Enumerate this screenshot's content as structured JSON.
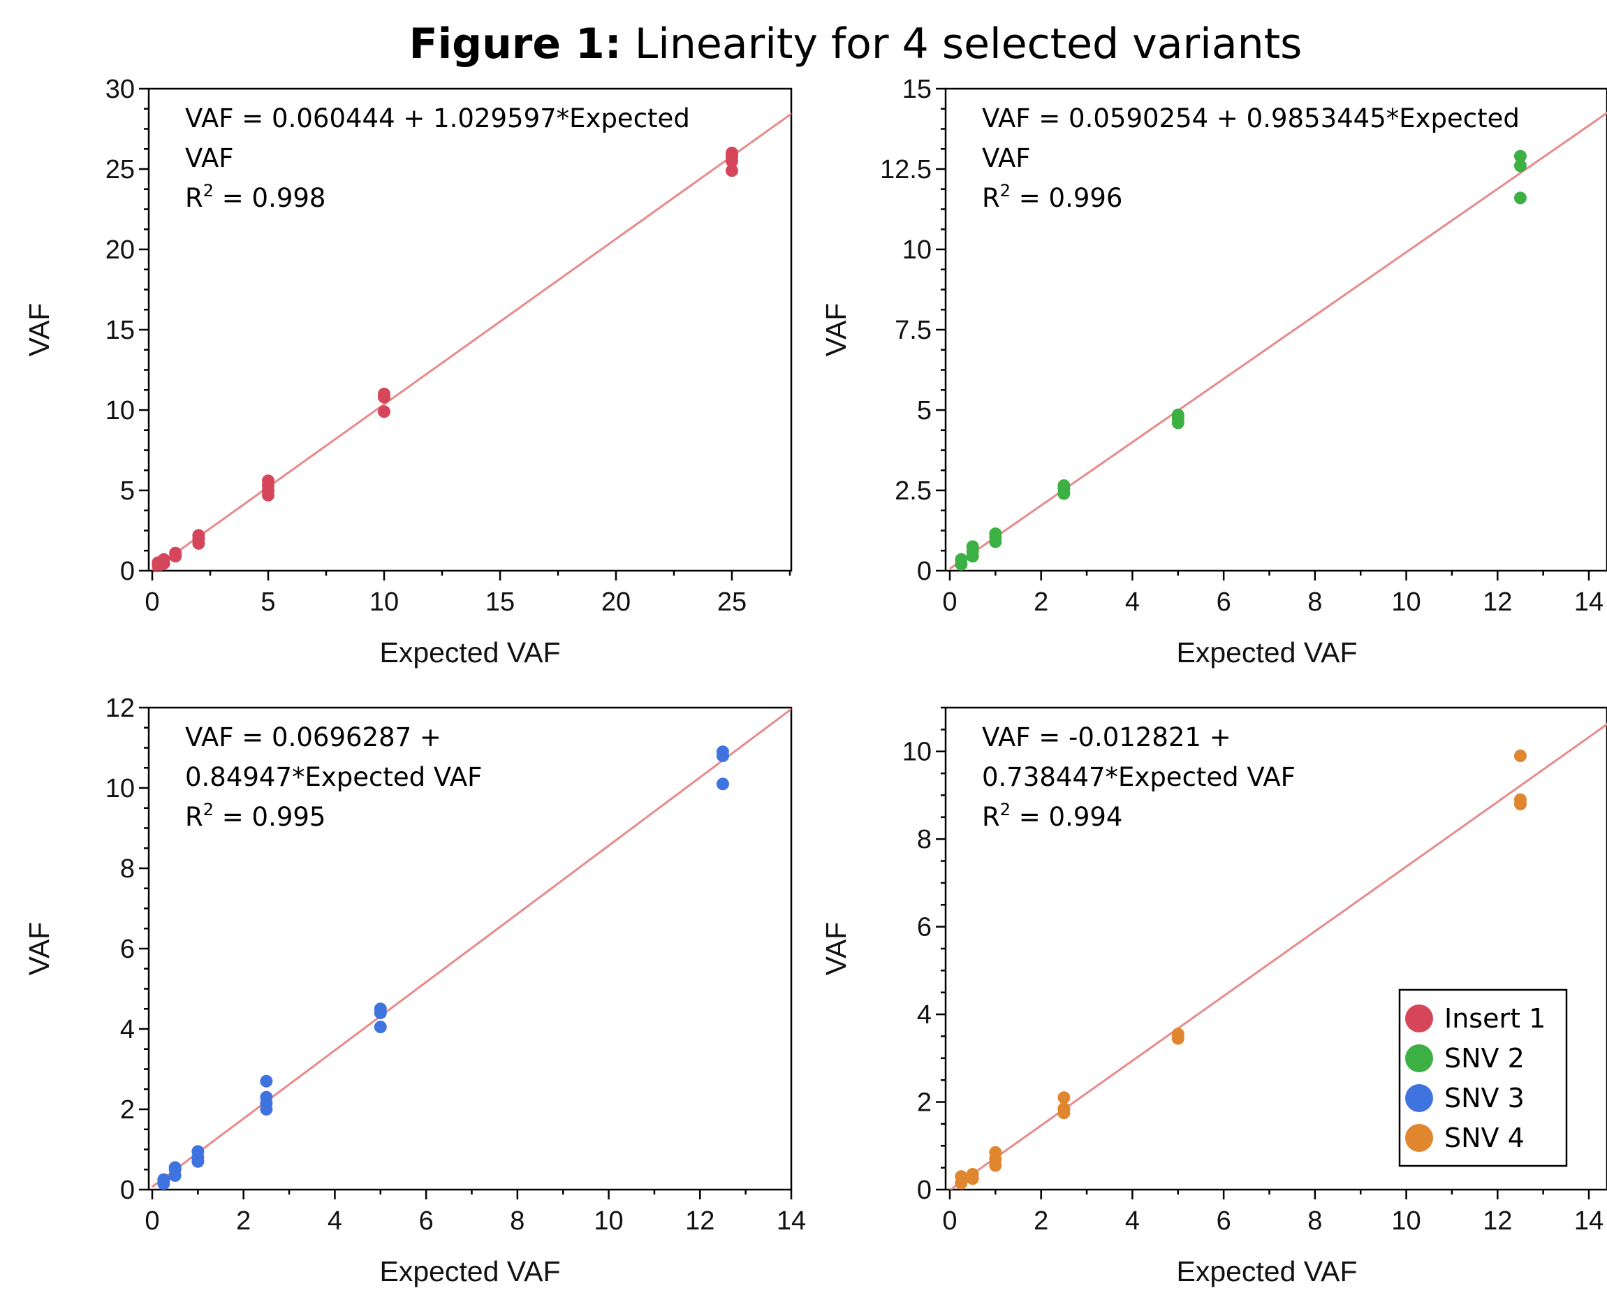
{
  "figure_title": {
    "bold": "Figure 1:",
    "rest": " Linearity for 4 selected variants"
  },
  "legend": [
    {
      "label": "Insert 1",
      "color": "#d6465a"
    },
    {
      "label": "SNV 2",
      "color": "#3cb043"
    },
    {
      "label": "SNV 3",
      "color": "#3f74e0"
    },
    {
      "label": "SNV 4",
      "color": "#e0862e"
    }
  ],
  "fit_line_color": "#e88a8a",
  "chart_data": [
    {
      "type": "scatter",
      "series_name": "Insert 1",
      "color": "#d6465a",
      "xlabel": "Expected VAF",
      "ylabel": "VAF",
      "xlim": [
        0,
        27.5
      ],
      "ylim": [
        0,
        30
      ],
      "xticks": [
        0,
        5,
        10,
        15,
        20,
        25
      ],
      "yticks": [
        0,
        5,
        10,
        15,
        20,
        25,
        30
      ],
      "equation_lines": [
        "VAF = 0.060444 + 1.029597*Expected",
        "VAF"
      ],
      "r2": "0.998",
      "fit": {
        "intercept": 0.060444,
        "slope": 1.029597
      },
      "points": [
        [
          0.25,
          0.3
        ],
        [
          0.25,
          0.5
        ],
        [
          0.5,
          0.45
        ],
        [
          0.5,
          0.7
        ],
        [
          1,
          0.9
        ],
        [
          1,
          1.1
        ],
        [
          2,
          1.7
        ],
        [
          2,
          2.0
        ],
        [
          2,
          2.2
        ],
        [
          5,
          4.7
        ],
        [
          5,
          5.0
        ],
        [
          5,
          5.3
        ],
        [
          5,
          5.6
        ],
        [
          10,
          9.9
        ],
        [
          10,
          10.8
        ],
        [
          10,
          11.0
        ],
        [
          25,
          24.9
        ],
        [
          25,
          25.5
        ],
        [
          25,
          25.8
        ],
        [
          25,
          26.0
        ]
      ]
    },
    {
      "type": "scatter",
      "series_name": "SNV 2",
      "color": "#3cb043",
      "xlabel": "Expected VAF",
      "ylabel": "VAF",
      "xlim": [
        0,
        14
      ],
      "ylim": [
        0,
        15
      ],
      "xticks": [
        0,
        2,
        4,
        6,
        8,
        10,
        12,
        14
      ],
      "yticks": [
        0,
        2.5,
        5,
        7.5,
        10,
        12.5,
        15
      ],
      "ytick_labels": [
        "0",
        "2.5",
        "5",
        "7.5",
        "10",
        "12.5",
        "15"
      ],
      "equation_lines": [
        "VAF = 0.0590254 + 0.9853445*Expected",
        "VAF"
      ],
      "r2": "0.996",
      "fit": {
        "intercept": 0.0590254,
        "slope": 0.9853445
      },
      "points": [
        [
          0.25,
          0.2
        ],
        [
          0.25,
          0.35
        ],
        [
          0.5,
          0.45
        ],
        [
          0.5,
          0.6
        ],
        [
          0.5,
          0.75
        ],
        [
          1,
          0.9
        ],
        [
          1,
          1.05
        ],
        [
          1,
          1.15
        ],
        [
          2.5,
          2.4
        ],
        [
          2.5,
          2.55
        ],
        [
          2.5,
          2.65
        ],
        [
          5,
          4.6
        ],
        [
          5,
          4.75
        ],
        [
          5,
          4.85
        ],
        [
          12.5,
          11.6
        ],
        [
          12.5,
          12.6
        ],
        [
          12.5,
          12.9
        ]
      ]
    },
    {
      "type": "scatter",
      "series_name": "SNV 3",
      "color": "#3f74e0",
      "xlabel": "Expected VAF",
      "ylabel": "VAF",
      "xlim": [
        0,
        14
      ],
      "ylim": [
        0,
        12
      ],
      "xticks": [
        0,
        2,
        4,
        6,
        8,
        10,
        12,
        14
      ],
      "yticks": [
        0,
        2,
        4,
        6,
        8,
        10,
        12
      ],
      "equation_lines": [
        "VAF = 0.0696287 +",
        "0.84947*Expected VAF"
      ],
      "r2": "0.995",
      "fit": {
        "intercept": 0.0696287,
        "slope": 0.84947
      },
      "points": [
        [
          0.25,
          0.15
        ],
        [
          0.25,
          0.25
        ],
        [
          0.5,
          0.35
        ],
        [
          0.5,
          0.5
        ],
        [
          0.5,
          0.55
        ],
        [
          1,
          0.7
        ],
        [
          1,
          0.8
        ],
        [
          1,
          0.95
        ],
        [
          2.5,
          2.0
        ],
        [
          2.5,
          2.15
        ],
        [
          2.5,
          2.3
        ],
        [
          2.5,
          2.7
        ],
        [
          5,
          4.05
        ],
        [
          5,
          4.4
        ],
        [
          5,
          4.5
        ],
        [
          12.5,
          10.1
        ],
        [
          12.5,
          10.8
        ],
        [
          12.5,
          10.9
        ]
      ]
    },
    {
      "type": "scatter",
      "series_name": "SNV 4",
      "color": "#e0862e",
      "xlabel": "Expected VAF",
      "ylabel": "VAF",
      "xlim": [
        0,
        14
      ],
      "ylim": [
        0,
        11
      ],
      "xticks": [
        0,
        2,
        4,
        6,
        8,
        10,
        12,
        14
      ],
      "yticks": [
        0,
        2,
        4,
        6,
        8,
        10
      ],
      "equation_lines": [
        "VAF = -0.012821 +",
        "0.738447*Expected VAF"
      ],
      "r2": "0.994",
      "fit": {
        "intercept": -0.012821,
        "slope": 0.738447
      },
      "points": [
        [
          0.25,
          0.15
        ],
        [
          0.25,
          0.3
        ],
        [
          0.5,
          0.25
        ],
        [
          0.5,
          0.35
        ],
        [
          1,
          0.55
        ],
        [
          1,
          0.7
        ],
        [
          1,
          0.85
        ],
        [
          2.5,
          1.75
        ],
        [
          2.5,
          1.85
        ],
        [
          2.5,
          2.1
        ],
        [
          5,
          3.45
        ],
        [
          5,
          3.55
        ],
        [
          12.5,
          8.8
        ],
        [
          12.5,
          8.9
        ],
        [
          12.5,
          9.9
        ]
      ]
    }
  ]
}
